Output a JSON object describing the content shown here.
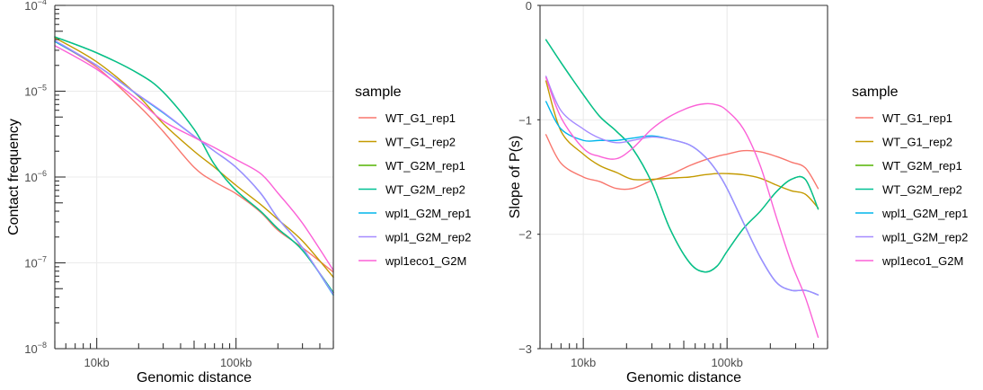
{
  "legend": {
    "title": "sample",
    "entries": [
      {
        "label": "WT_G1_rep1",
        "color": "#F8766D"
      },
      {
        "label": "WT_G1_rep2",
        "color": "#C49A00"
      },
      {
        "label": "WT_G2M_rep1",
        "color": "#53B400"
      },
      {
        "label": "WT_G2M_rep2",
        "color": "#00C094"
      },
      {
        "label": "wpl1_G2M_rep1",
        "color": "#00B6EB"
      },
      {
        "label": "wpl1_G2M_rep2",
        "color": "#A58AFF"
      },
      {
        "label": "wpl1eco1_G2M",
        "color": "#FB61D7"
      }
    ]
  },
  "chart_data": [
    {
      "type": "line",
      "title": "",
      "xlabel": "Genomic distance",
      "ylabel": "Contact frequency",
      "xscale": "log10",
      "yscale": "log10",
      "xlim": [
        5000,
        500000
      ],
      "ylim": [
        1e-08,
        0.0001
      ],
      "grid": true,
      "legend_position": "right",
      "x_ticks": [
        {
          "value": 10000,
          "label": "10kb"
        },
        {
          "value": 100000,
          "label": "100kb"
        }
      ],
      "y_ticks": [
        {
          "value": 0.0001,
          "label": "10",
          "exp": "−4"
        },
        {
          "value": 1e-05,
          "label": "10",
          "exp": "−5"
        },
        {
          "value": 1e-06,
          "label": "10",
          "exp": "−6"
        },
        {
          "value": 1e-07,
          "label": "10",
          "exp": "−7"
        },
        {
          "value": 1e-08,
          "label": "10",
          "exp": "−8"
        }
      ],
      "x": [
        5000,
        10000,
        20000,
        30000,
        50000,
        70000,
        100000,
        150000,
        200000,
        300000,
        500000
      ],
      "series": [
        {
          "name": "WT_G1_rep1",
          "values": [
            3.8e-05,
            1.9e-05,
            6.8e-06,
            3.4e-06,
            1.3e-06,
            8.8e-07,
            6.4e-07,
            3.9e-07,
            2.4e-07,
            1.5e-07,
            7.8e-08
          ]
        },
        {
          "name": "WT_G1_rep2",
          "values": [
            4.2e-05,
            2.2e-05,
            8.7e-06,
            4.2e-06,
            2e-06,
            1.3e-06,
            8e-07,
            4.8e-07,
            3.2e-07,
            1.8e-07,
            6.8e-08
          ]
        },
        {
          "name": "WT_G2M_rep1",
          "values": [
            4.3e-05,
            2.8e-05,
            1.6e-05,
            9.8e-06,
            3.6e-06,
            1.4e-06,
            7e-07,
            4e-07,
            2.5e-07,
            1.4e-07,
            4.5e-08
          ]
        },
        {
          "name": "WT_G2M_rep2",
          "values": [
            4.3e-05,
            2.8e-05,
            1.6e-05,
            9.8e-06,
            3.6e-06,
            1.4e-06,
            7e-07,
            4e-07,
            2.5e-07,
            1.4e-07,
            4.5e-08
          ]
        },
        {
          "name": "wpl1_G2M_rep1",
          "values": [
            3.8e-05,
            2e-05,
            8.9e-06,
            5.6e-06,
            3e-06,
            2e-06,
            1.3e-06,
            6.5e-07,
            3.3e-07,
            1.5e-07,
            4.2e-08
          ]
        },
        {
          "name": "wpl1_G2M_rep2",
          "values": [
            3.9e-05,
            2e-05,
            9e-06,
            5.7e-06,
            3e-06,
            2e-06,
            1.3e-06,
            6.5e-07,
            3.3e-07,
            1.5e-07,
            4.3e-08
          ]
        },
        {
          "name": "wpl1eco1_G2M",
          "values": [
            3.4e-05,
            1.8e-05,
            7.8e-06,
            4.5e-06,
            2.9e-06,
            2.2e-06,
            1.6e-06,
            1.1e-06,
            6.5e-07,
            2.9e-07,
            8.2e-08
          ]
        }
      ]
    },
    {
      "type": "line",
      "title": "",
      "xlabel": "Genomic distance",
      "ylabel": "Slope of P(s)",
      "xscale": "log10",
      "yscale": "linear",
      "xlim": [
        5000,
        500000
      ],
      "ylim": [
        -3,
        0
      ],
      "grid": true,
      "legend_position": "right",
      "x_ticks": [
        {
          "value": 10000,
          "label": "10kb"
        },
        {
          "value": 100000,
          "label": "100kb"
        }
      ],
      "y_ticks": [
        {
          "value": 0,
          "label": "0"
        },
        {
          "value": -1,
          "label": "−1"
        },
        {
          "value": -2,
          "label": "−2"
        },
        {
          "value": -3,
          "label": "−3"
        }
      ],
      "x": [
        5500,
        7000,
        10000,
        13000,
        17000,
        22000,
        30000,
        40000,
        55000,
        70000,
        85000,
        100000,
        130000,
        170000,
        220000,
        280000,
        350000,
        430000
      ],
      "series": [
        {
          "name": "WT_G1_rep1",
          "values": [
            -1.13,
            -1.38,
            -1.5,
            -1.54,
            -1.6,
            -1.6,
            -1.53,
            -1.48,
            -1.4,
            -1.35,
            -1.32,
            -1.3,
            -1.27,
            -1.28,
            -1.32,
            -1.37,
            -1.42,
            -1.6
          ]
        },
        {
          "name": "WT_G1_rep2",
          "values": [
            -0.66,
            -1.1,
            -1.3,
            -1.4,
            -1.46,
            -1.52,
            -1.52,
            -1.51,
            -1.5,
            -1.48,
            -1.47,
            -1.47,
            -1.48,
            -1.51,
            -1.57,
            -1.62,
            -1.65,
            -1.77
          ]
        },
        {
          "name": "WT_G2M_rep1",
          "values": [
            -0.3,
            -0.5,
            -0.78,
            -0.97,
            -1.1,
            -1.25,
            -1.55,
            -1.95,
            -2.25,
            -2.33,
            -2.28,
            -2.15,
            -1.95,
            -1.8,
            -1.63,
            -1.52,
            -1.52,
            -1.78
          ]
        },
        {
          "name": "WT_G2M_rep2",
          "values": [
            -0.3,
            -0.5,
            -0.78,
            -0.97,
            -1.1,
            -1.25,
            -1.55,
            -1.95,
            -2.25,
            -2.33,
            -2.28,
            -2.15,
            -1.95,
            -1.8,
            -1.63,
            -1.52,
            -1.52,
            -1.78
          ]
        },
        {
          "name": "wpl1_G2M_rep1",
          "values": [
            -0.84,
            -1.08,
            -1.18,
            -1.18,
            -1.18,
            -1.16,
            -1.14,
            -1.17,
            -1.22,
            -1.32,
            -1.45,
            -1.6,
            -1.9,
            -2.2,
            -2.42,
            -2.49,
            -2.49,
            -2.53
          ]
        },
        {
          "name": "wpl1_G2M_rep2",
          "values": [
            -0.62,
            -0.92,
            -1.08,
            -1.16,
            -1.2,
            -1.18,
            -1.15,
            -1.17,
            -1.22,
            -1.32,
            -1.45,
            -1.6,
            -1.9,
            -2.2,
            -2.42,
            -2.49,
            -2.49,
            -2.53
          ]
        },
        {
          "name": "wpl1eco1_G2M",
          "values": [
            -0.63,
            -0.98,
            -1.25,
            -1.32,
            -1.34,
            -1.25,
            -1.08,
            -0.97,
            -0.89,
            -0.86,
            -0.87,
            -0.92,
            -1.08,
            -1.4,
            -1.85,
            -2.25,
            -2.55,
            -2.9
          ]
        }
      ]
    }
  ]
}
